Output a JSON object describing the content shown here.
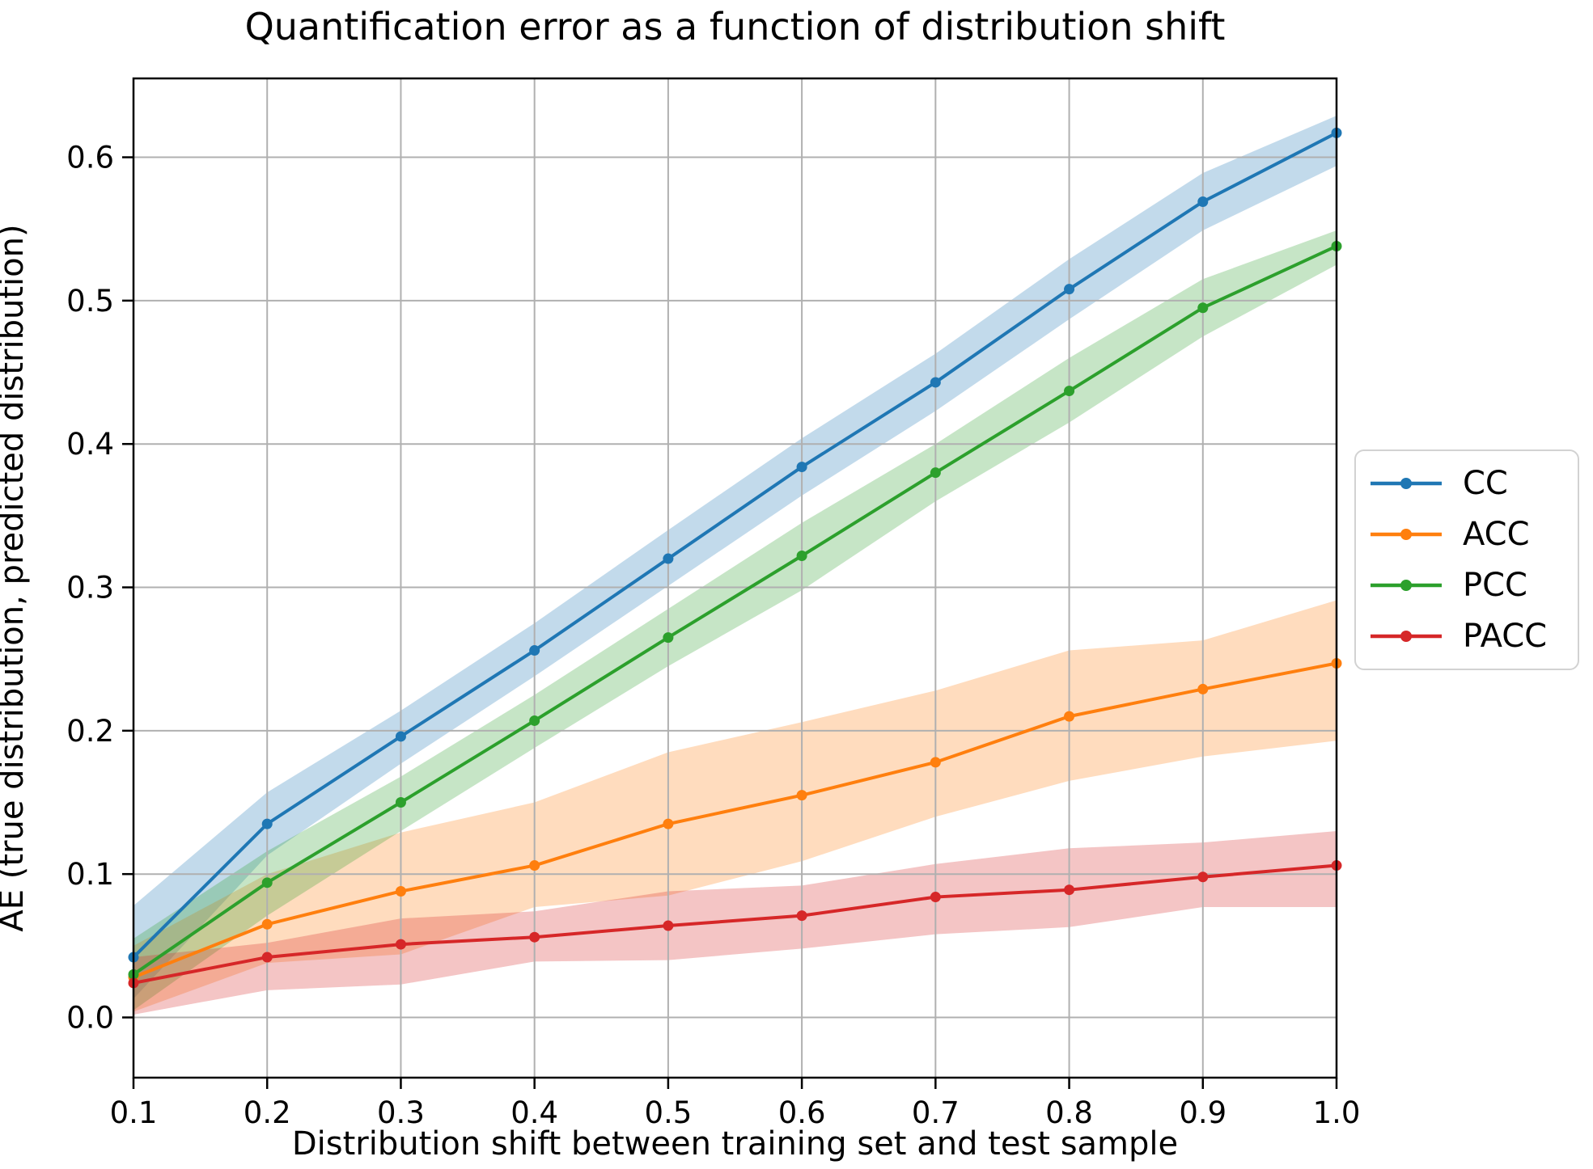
{
  "chart_data": {
    "type": "line",
    "title": "Quantification error as a function of distribution shift",
    "xlabel": "Distribution shift between training set and test sample",
    "ylabel": "AE (true distribution, predicted distribution)",
    "x": [
      0.1,
      0.2,
      0.3,
      0.4,
      0.5,
      0.6,
      0.7,
      0.8,
      0.9,
      1.0
    ],
    "xtick_labels": [
      "0.1",
      "0.2",
      "0.3",
      "0.4",
      "0.5",
      "0.6",
      "0.7",
      "0.8",
      "0.9",
      "1.0"
    ],
    "ytick_values": [
      0.0,
      0.1,
      0.2,
      0.3,
      0.4,
      0.5,
      0.6
    ],
    "ytick_labels": [
      "0.0",
      "0.1",
      "0.2",
      "0.3",
      "0.4",
      "0.5",
      "0.6"
    ],
    "xlim": [
      0.1,
      1.0
    ],
    "ylim": [
      -0.042,
      0.655
    ],
    "grid": true,
    "legend_position": "right-outside",
    "series": [
      {
        "name": "CC",
        "color": "#1f77b4",
        "values": [
          0.042,
          0.135,
          0.196,
          0.256,
          0.32,
          0.384,
          0.443,
          0.508,
          0.569,
          0.617
        ],
        "band_lower": [
          0.013,
          0.113,
          0.177,
          0.238,
          0.301,
          0.364,
          0.423,
          0.487,
          0.549,
          0.594
        ],
        "band_upper": [
          0.078,
          0.157,
          0.214,
          0.275,
          0.34,
          0.404,
          0.463,
          0.529,
          0.589,
          0.629
        ]
      },
      {
        "name": "ACC",
        "color": "#ff7f0e",
        "values": [
          0.028,
          0.065,
          0.088,
          0.106,
          0.135,
          0.155,
          0.178,
          0.21,
          0.229,
          0.247
        ],
        "band_lower": [
          0.004,
          0.038,
          0.044,
          0.077,
          0.085,
          0.109,
          0.14,
          0.165,
          0.182,
          0.193
        ],
        "band_upper": [
          0.05,
          0.1,
          0.129,
          0.15,
          0.185,
          0.206,
          0.228,
          0.256,
          0.263,
          0.291
        ]
      },
      {
        "name": "PCC",
        "color": "#2ca02c",
        "values": [
          0.03,
          0.094,
          0.15,
          0.207,
          0.265,
          0.322,
          0.38,
          0.437,
          0.495,
          0.538
        ],
        "band_lower": [
          0.005,
          0.071,
          0.13,
          0.188,
          0.245,
          0.298,
          0.36,
          0.415,
          0.475,
          0.525
        ],
        "band_upper": [
          0.055,
          0.116,
          0.168,
          0.225,
          0.285,
          0.345,
          0.4,
          0.46,
          0.515,
          0.549
        ]
      },
      {
        "name": "PACC",
        "color": "#d62728",
        "values": [
          0.024,
          0.042,
          0.051,
          0.056,
          0.064,
          0.071,
          0.084,
          0.089,
          0.098,
          0.106
        ],
        "band_lower": [
          0.002,
          0.019,
          0.023,
          0.039,
          0.04,
          0.048,
          0.058,
          0.063,
          0.077,
          0.077
        ],
        "band_upper": [
          0.042,
          0.052,
          0.069,
          0.074,
          0.088,
          0.092,
          0.107,
          0.118,
          0.122,
          0.13
        ]
      }
    ]
  },
  "style": {
    "grid_color": "#b0b0b0",
    "spine_color": "#000000",
    "background": "#ffffff",
    "legend_border": "#d2d2d2",
    "band_opacity": 0.27
  }
}
